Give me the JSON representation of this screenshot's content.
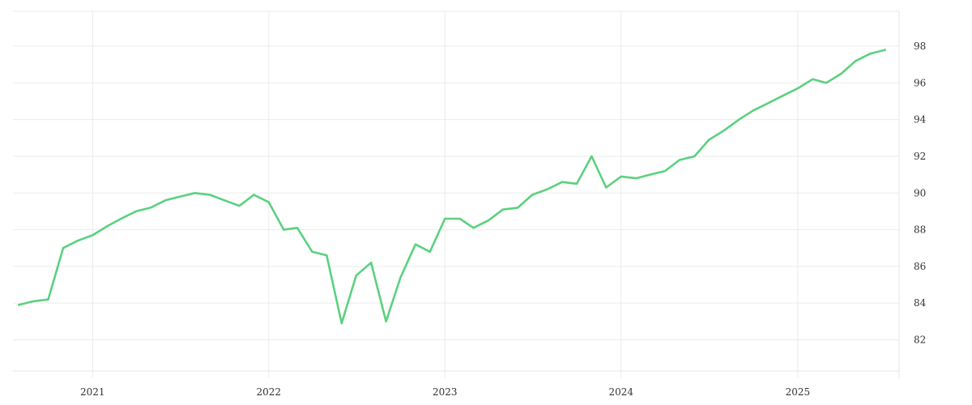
{
  "chart_data": {
    "type": "line",
    "x_label": "",
    "y_label": "",
    "title": "",
    "y_axis_position": "right",
    "ylim": [
      80.3,
      99.9
    ],
    "xlim": [
      "2020-07-20",
      "2025-07-30"
    ],
    "y_ticks": [
      82,
      84,
      86,
      88,
      90,
      92,
      94,
      96,
      98
    ],
    "x_ticks": [
      {
        "date": "2021-01-01",
        "label": "2021"
      },
      {
        "date": "2022-01-01",
        "label": "2022"
      },
      {
        "date": "2023-01-01",
        "label": "2023"
      },
      {
        "date": "2024-01-01",
        "label": "2024"
      },
      {
        "date": "2025-01-01",
        "label": "2025"
      }
    ],
    "grid": true,
    "colors": {
      "series": "#5bd17f"
    },
    "series": [
      {
        "x": [
          "2020-08-01",
          "2020-09-01",
          "2020-10-01",
          "2020-11-01",
          "2020-12-01",
          "2021-01-01",
          "2021-02-01",
          "2021-03-01",
          "2021-04-01",
          "2021-05-01",
          "2021-06-01",
          "2021-07-01",
          "2021-08-01",
          "2021-09-01",
          "2021-10-01",
          "2021-11-01",
          "2021-12-01",
          "2022-01-01",
          "2022-02-01",
          "2022-03-01",
          "2022-04-01",
          "2022-05-01",
          "2022-06-01",
          "2022-07-01",
          "2022-08-01",
          "2022-09-01",
          "2022-10-01",
          "2022-11-01",
          "2022-12-01",
          "2023-01-01",
          "2023-02-01",
          "2023-03-01",
          "2023-04-01",
          "2023-05-01",
          "2023-06-01",
          "2023-07-01",
          "2023-08-01",
          "2023-09-01",
          "2023-10-01",
          "2023-11-01",
          "2023-12-01",
          "2024-01-01",
          "2024-02-01",
          "2024-03-01",
          "2024-04-01",
          "2024-05-01",
          "2024-06-01",
          "2024-07-01",
          "2024-08-01",
          "2024-09-01",
          "2024-10-01",
          "2024-11-01",
          "2024-12-01",
          "2025-01-01",
          "2025-02-01",
          "2025-03-01",
          "2025-04-01",
          "2025-05-01",
          "2025-06-01",
          "2025-07-01"
        ],
        "values": [
          83.9,
          84.1,
          84.2,
          87.0,
          87.4,
          87.7,
          88.2,
          88.6,
          89.0,
          89.2,
          89.6,
          89.8,
          90.0,
          89.9,
          89.6,
          89.3,
          89.9,
          89.5,
          88.0,
          88.1,
          86.8,
          86.6,
          82.9,
          85.5,
          86.2,
          83.0,
          85.4,
          87.2,
          86.8,
          88.6,
          88.6,
          88.1,
          88.5,
          89.1,
          89.2,
          89.9,
          90.2,
          90.6,
          90.5,
          92.0,
          90.3,
          90.9,
          90.8,
          91.0,
          91.2,
          91.8,
          92.0,
          92.9,
          93.4,
          94.0,
          94.5,
          94.9,
          95.3,
          95.7,
          96.2,
          96.0,
          96.5,
          97.2,
          97.6,
          97.8
        ]
      }
    ]
  }
}
